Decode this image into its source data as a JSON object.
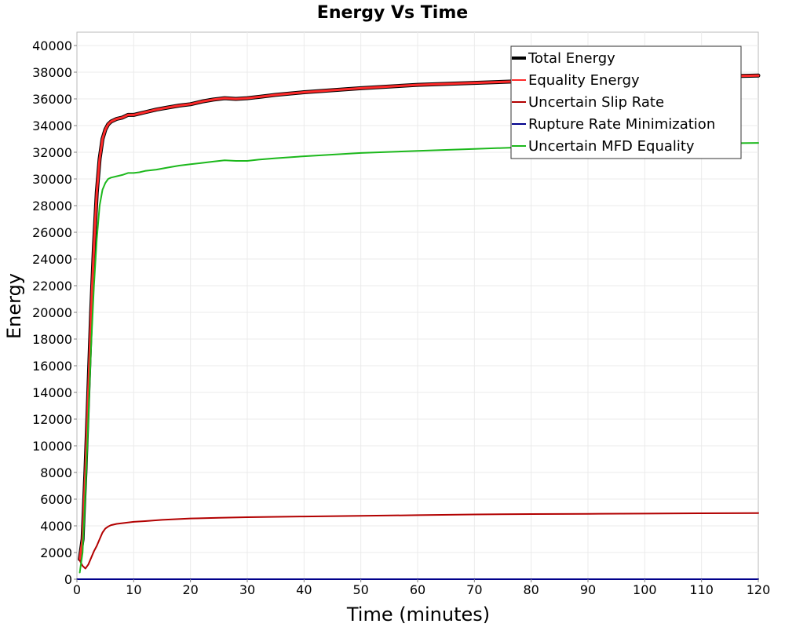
{
  "chart_data": {
    "type": "line",
    "title": "Energy Vs Time",
    "xlabel": "Time (minutes)",
    "ylabel": "Energy",
    "xlim": [
      0,
      120
    ],
    "ylim": [
      0,
      41000
    ],
    "x_ticks": [
      0,
      10,
      20,
      30,
      40,
      50,
      60,
      70,
      80,
      90,
      100,
      110,
      120
    ],
    "y_ticks": [
      0,
      2000,
      4000,
      6000,
      8000,
      10000,
      12000,
      14000,
      16000,
      18000,
      20000,
      22000,
      24000,
      26000,
      28000,
      30000,
      32000,
      34000,
      36000,
      38000,
      40000
    ],
    "grid": true,
    "legend_position": "top-right",
    "series": [
      {
        "name": "Total Energy",
        "color": "#000000",
        "x": [
          0.5,
          1,
          1.5,
          2,
          2.5,
          3,
          3.5,
          4,
          4.5,
          5,
          5.5,
          6,
          7,
          8,
          9,
          10,
          11,
          12,
          14,
          16,
          18,
          20,
          22,
          24,
          26,
          28,
          30,
          32,
          35,
          40,
          50,
          60,
          70,
          80,
          90,
          100,
          110,
          120
        ],
        "y": [
          1500,
          3000,
          8000,
          14000,
          20000,
          25000,
          29000,
          31500,
          33000,
          33700,
          34100,
          34300,
          34500,
          34600,
          34800,
          34800,
          34900,
          35000,
          35200,
          35350,
          35500,
          35600,
          35800,
          35950,
          36050,
          36000,
          36050,
          36150,
          36300,
          36500,
          36800,
          37050,
          37200,
          37350,
          37450,
          37550,
          37650,
          37750
        ]
      },
      {
        "name": "Equality Energy",
        "color": "#ff2a2a",
        "x": [
          0.5,
          1,
          1.5,
          2,
          2.5,
          3,
          3.5,
          4,
          4.5,
          5,
          5.5,
          6,
          7,
          8,
          9,
          10,
          11,
          12,
          14,
          16,
          18,
          20,
          22,
          24,
          26,
          28,
          30,
          32,
          35,
          40,
          50,
          60,
          70,
          80,
          90,
          100,
          110,
          120
        ],
        "y": [
          1500,
          3000,
          8000,
          14000,
          20000,
          25000,
          29000,
          31500,
          33000,
          33700,
          34100,
          34300,
          34500,
          34600,
          34800,
          34800,
          34900,
          35000,
          35200,
          35350,
          35500,
          35600,
          35800,
          35950,
          36050,
          36000,
          36050,
          36150,
          36300,
          36500,
          36800,
          37050,
          37200,
          37350,
          37450,
          37550,
          37650,
          37750
        ]
      },
      {
        "name": "Uncertain Slip Rate",
        "color": "#b20000",
        "x": [
          0.5,
          1,
          1.5,
          2,
          2.5,
          3,
          3.5,
          4,
          4.5,
          5,
          5.5,
          6,
          7,
          8,
          9,
          10,
          12,
          15,
          20,
          25,
          30,
          40,
          50,
          60,
          70,
          80,
          90,
          100,
          110,
          120
        ],
        "y": [
          1400,
          1000,
          800,
          1100,
          1600,
          2100,
          2500,
          3000,
          3500,
          3800,
          3950,
          4050,
          4150,
          4200,
          4250,
          4300,
          4350,
          4450,
          4550,
          4600,
          4650,
          4700,
          4750,
          4800,
          4850,
          4880,
          4900,
          4920,
          4940,
          4960
        ]
      },
      {
        "name": "Rupture Rate Minimization",
        "color": "#00008b",
        "x": [
          0,
          120
        ],
        "y": [
          0,
          0
        ]
      },
      {
        "name": "Uncertain MFD Equality",
        "color": "#1cb81c",
        "x": [
          0.5,
          1,
          1.5,
          2,
          2.5,
          3,
          3.5,
          4,
          4.5,
          5,
          5.5,
          6,
          7,
          8,
          9,
          10,
          11,
          12,
          14,
          16,
          18,
          20,
          22,
          24,
          26,
          28,
          30,
          32,
          35,
          40,
          50,
          60,
          70,
          80,
          90,
          100,
          110,
          120
        ],
        "y": [
          500,
          2000,
          6500,
          12000,
          17500,
          22000,
          25500,
          28000,
          29200,
          29700,
          30000,
          30100,
          30200,
          30300,
          30450,
          30450,
          30500,
          30600,
          30700,
          30850,
          31000,
          31100,
          31200,
          31300,
          31400,
          31350,
          31350,
          31450,
          31550,
          31700,
          31950,
          32100,
          32250,
          32400,
          32500,
          32580,
          32650,
          32700
        ]
      }
    ]
  }
}
